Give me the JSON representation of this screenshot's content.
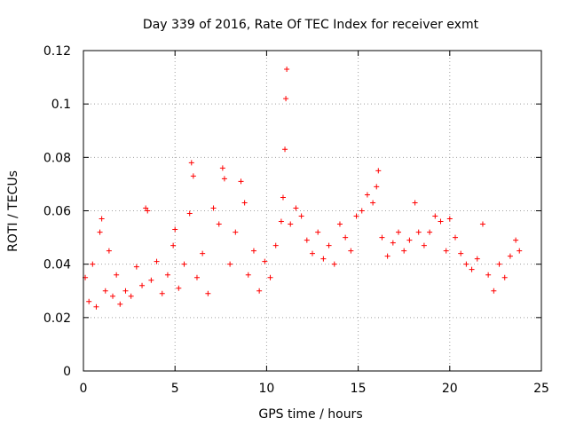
{
  "chart_data": {
    "type": "scatter",
    "title": "Day 339 of 2016, Rate Of TEC Index for receiver exmt",
    "xlabel": "GPS time / hours",
    "ylabel": "ROTI / TECUs",
    "xlim": [
      0,
      25
    ],
    "ylim": [
      0,
      0.12
    ],
    "x_ticks": [
      0,
      5,
      10,
      15,
      20,
      25
    ],
    "x_tick_labels": [
      "0",
      "5",
      "10",
      "15",
      "20",
      "25"
    ],
    "y_ticks": [
      0,
      0.02,
      0.04,
      0.06,
      0.08,
      0.1,
      0.12
    ],
    "y_tick_labels": [
      "0",
      "0.02",
      "0.04",
      "0.06",
      "0.08",
      "0.1",
      "0.12"
    ],
    "grid": true,
    "marker": "plus",
    "series": [
      {
        "name": "ROTI",
        "color": "#ff0000",
        "x": [
          0.1,
          0.3,
          0.5,
          0.7,
          0.9,
          1.0,
          1.2,
          1.4,
          1.6,
          1.8,
          2.0,
          2.3,
          2.6,
          2.9,
          3.2,
          3.4,
          3.5,
          3.7,
          4.0,
          4.3,
          4.6,
          4.9,
          5.0,
          5.2,
          5.5,
          5.8,
          5.9,
          6.0,
          6.2,
          6.5,
          6.8,
          7.1,
          7.4,
          7.6,
          7.7,
          8.0,
          8.3,
          8.6,
          8.8,
          9.0,
          9.3,
          9.6,
          9.9,
          10.2,
          10.5,
          10.8,
          10.9,
          11.0,
          11.05,
          11.1,
          11.3,
          11.6,
          11.9,
          12.2,
          12.5,
          12.8,
          13.1,
          13.4,
          13.7,
          14.0,
          14.3,
          14.6,
          14.9,
          15.2,
          15.5,
          15.8,
          16.0,
          16.1,
          16.3,
          16.6,
          16.9,
          17.2,
          17.5,
          17.8,
          18.1,
          18.3,
          18.6,
          18.9,
          19.2,
          19.5,
          19.8,
          20.0,
          20.3,
          20.6,
          20.9,
          21.2,
          21.5,
          21.8,
          22.1,
          22.4,
          22.7,
          23.0,
          23.3,
          23.6,
          23.8
        ],
        "y": [
          0.035,
          0.026,
          0.04,
          0.024,
          0.052,
          0.057,
          0.03,
          0.045,
          0.028,
          0.036,
          0.025,
          0.03,
          0.028,
          0.039,
          0.032,
          0.061,
          0.06,
          0.034,
          0.041,
          0.029,
          0.036,
          0.047,
          0.053,
          0.031,
          0.04,
          0.059,
          0.078,
          0.073,
          0.035,
          0.044,
          0.029,
          0.061,
          0.055,
          0.076,
          0.072,
          0.04,
          0.052,
          0.071,
          0.063,
          0.036,
          0.045,
          0.03,
          0.041,
          0.035,
          0.047,
          0.056,
          0.065,
          0.083,
          0.102,
          0.113,
          0.055,
          0.061,
          0.058,
          0.049,
          0.044,
          0.052,
          0.042,
          0.047,
          0.04,
          0.055,
          0.05,
          0.045,
          0.058,
          0.06,
          0.066,
          0.063,
          0.069,
          0.075,
          0.05,
          0.043,
          0.048,
          0.052,
          0.045,
          0.049,
          0.063,
          0.052,
          0.047,
          0.052,
          0.058,
          0.056,
          0.045,
          0.057,
          0.05,
          0.044,
          0.04,
          0.038,
          0.042,
          0.055,
          0.036,
          0.03,
          0.04,
          0.035,
          0.043,
          0.049,
          0.045
        ]
      }
    ]
  }
}
